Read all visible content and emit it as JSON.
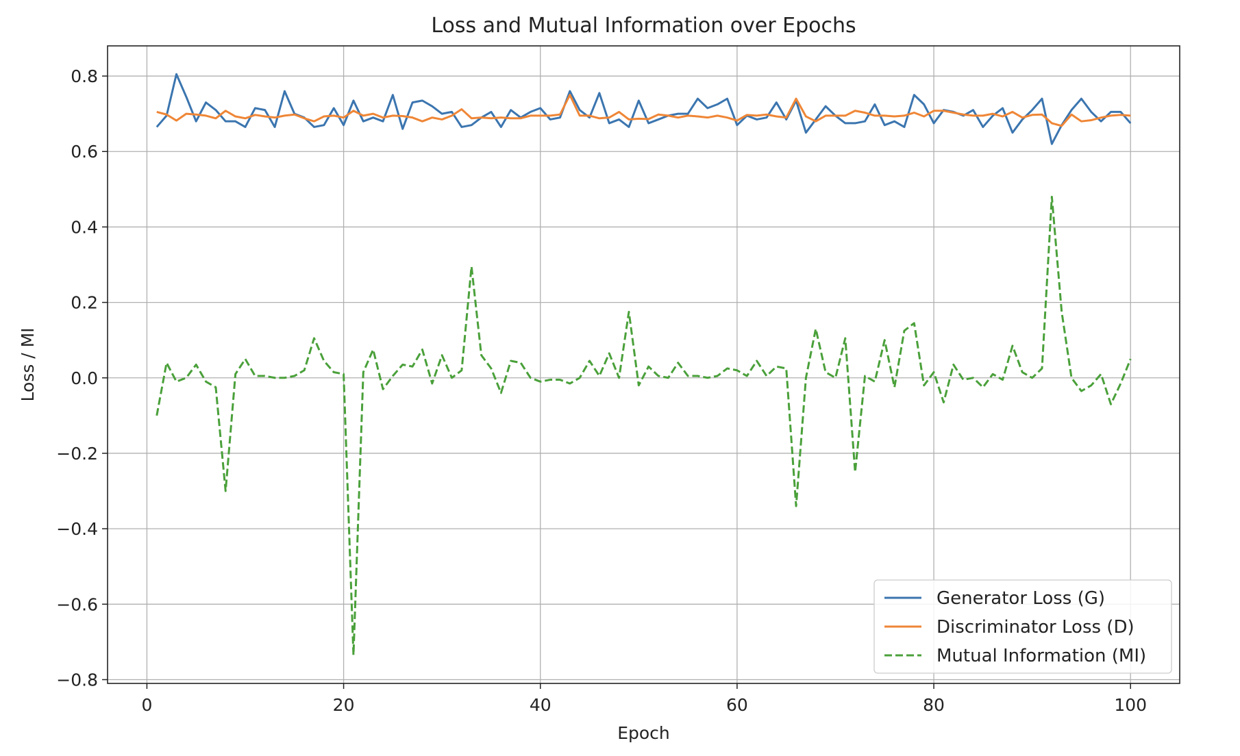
{
  "chart_data": {
    "type": "line",
    "title": "Loss and Mutual Information over Epochs",
    "xlabel": "Epoch",
    "ylabel": "Loss / MI",
    "xlim": [
      -4,
      105
    ],
    "ylim": [
      -0.81,
      0.88
    ],
    "xticks": [
      0,
      20,
      40,
      60,
      80,
      100
    ],
    "yticks": [
      -0.8,
      -0.6,
      -0.4,
      -0.2,
      0.0,
      0.2,
      0.4,
      0.6,
      0.8
    ],
    "xtick_labels": [
      "0",
      "20",
      "40",
      "60",
      "80",
      "100"
    ],
    "ytick_labels": [
      "−0.8",
      "−0.6",
      "−0.4",
      "−0.2",
      "0.0",
      "0.2",
      "0.4",
      "0.6",
      "0.8"
    ],
    "grid": true,
    "legend_position": "bottom-right",
    "x": [
      1,
      2,
      3,
      4,
      5,
      6,
      7,
      8,
      9,
      10,
      11,
      12,
      13,
      14,
      15,
      16,
      17,
      18,
      19,
      20,
      21,
      22,
      23,
      24,
      25,
      26,
      27,
      28,
      29,
      30,
      31,
      32,
      33,
      34,
      35,
      36,
      37,
      38,
      39,
      40,
      41,
      42,
      43,
      44,
      45,
      46,
      47,
      48,
      49,
      50,
      51,
      52,
      53,
      54,
      55,
      56,
      57,
      58,
      59,
      60,
      61,
      62,
      63,
      64,
      65,
      66,
      67,
      68,
      69,
      70,
      71,
      72,
      73,
      74,
      75,
      76,
      77,
      78,
      79,
      80,
      81,
      82,
      83,
      84,
      85,
      86,
      87,
      88,
      89,
      90,
      91,
      92,
      93,
      94,
      95,
      96,
      97,
      98,
      99,
      100
    ],
    "series": [
      {
        "name": "Generator Loss (G)",
        "color": "#3b75af",
        "dash": "solid",
        "values": [
          0.665,
          0.695,
          0.805,
          0.745,
          0.68,
          0.73,
          0.71,
          0.68,
          0.68,
          0.665,
          0.715,
          0.71,
          0.665,
          0.76,
          0.7,
          0.69,
          0.665,
          0.67,
          0.715,
          0.67,
          0.735,
          0.68,
          0.69,
          0.68,
          0.75,
          0.66,
          0.73,
          0.735,
          0.72,
          0.7,
          0.705,
          0.665,
          0.67,
          0.69,
          0.705,
          0.665,
          0.71,
          0.69,
          0.705,
          0.715,
          0.685,
          0.69,
          0.76,
          0.71,
          0.69,
          0.755,
          0.675,
          0.685,
          0.665,
          0.735,
          0.675,
          0.685,
          0.695,
          0.7,
          0.7,
          0.74,
          0.715,
          0.725,
          0.74,
          0.67,
          0.695,
          0.685,
          0.69,
          0.73,
          0.685,
          0.735,
          0.65,
          0.685,
          0.72,
          0.695,
          0.675,
          0.675,
          0.68,
          0.725,
          0.67,
          0.68,
          0.665,
          0.75,
          0.725,
          0.675,
          0.71,
          0.705,
          0.695,
          0.71,
          0.665,
          0.695,
          0.715,
          0.65,
          0.685,
          0.71,
          0.74,
          0.62,
          0.67,
          0.71,
          0.74,
          0.705,
          0.68,
          0.705,
          0.705,
          0.675
        ]
      },
      {
        "name": "Discriminator Loss (D)",
        "color": "#ef8636",
        "dash": "solid",
        "values": [
          0.705,
          0.698,
          0.682,
          0.7,
          0.698,
          0.695,
          0.688,
          0.708,
          0.693,
          0.688,
          0.697,
          0.693,
          0.69,
          0.695,
          0.698,
          0.688,
          0.68,
          0.693,
          0.695,
          0.69,
          0.708,
          0.695,
          0.7,
          0.69,
          0.695,
          0.694,
          0.69,
          0.68,
          0.69,
          0.685,
          0.695,
          0.712,
          0.688,
          0.69,
          0.688,
          0.69,
          0.688,
          0.688,
          0.695,
          0.695,
          0.695,
          0.698,
          0.75,
          0.695,
          0.695,
          0.688,
          0.69,
          0.705,
          0.685,
          0.687,
          0.686,
          0.698,
          0.695,
          0.69,
          0.695,
          0.693,
          0.69,
          0.695,
          0.69,
          0.682,
          0.697,
          0.695,
          0.698,
          0.693,
          0.69,
          0.74,
          0.693,
          0.68,
          0.695,
          0.695,
          0.695,
          0.708,
          0.703,
          0.695,
          0.695,
          0.693,
          0.695,
          0.703,
          0.693,
          0.708,
          0.708,
          0.703,
          0.698,
          0.695,
          0.695,
          0.7,
          0.693,
          0.705,
          0.69,
          0.697,
          0.698,
          0.675,
          0.668,
          0.698,
          0.68,
          0.683,
          0.69,
          0.695,
          0.697,
          0.695
        ]
      },
      {
        "name": "Mutual Information (MI)",
        "color": "#4aa03a",
        "dash": "dashed",
        "values": [
          -0.1,
          0.04,
          -0.01,
          0.0,
          0.035,
          -0.01,
          -0.025,
          -0.3,
          0.01,
          0.05,
          0.005,
          0.005,
          0.0,
          0.0,
          0.005,
          0.02,
          0.105,
          0.045,
          0.015,
          0.01,
          -0.735,
          0.015,
          0.075,
          -0.03,
          0.005,
          0.035,
          0.03,
          0.075,
          -0.015,
          0.06,
          0.0,
          0.02,
          0.295,
          0.06,
          0.025,
          -0.04,
          0.045,
          0.04,
          0.0,
          -0.01,
          -0.005,
          -0.005,
          -0.015,
          0.0,
          0.045,
          0.005,
          0.065,
          0.0,
          0.175,
          -0.02,
          0.03,
          0.005,
          0.0,
          0.04,
          0.005,
          0.005,
          0.0,
          0.005,
          0.025,
          0.02,
          0.005,
          0.045,
          0.005,
          0.03,
          0.025,
          -0.34,
          0.0,
          0.13,
          0.015,
          0.0,
          0.105,
          -0.25,
          0.005,
          -0.01,
          0.1,
          -0.025,
          0.125,
          0.145,
          -0.02,
          0.015,
          -0.065,
          0.035,
          -0.005,
          0.0,
          -0.025,
          0.01,
          -0.005,
          0.085,
          0.015,
          0.0,
          0.025,
          0.48,
          0.175,
          0.0,
          -0.035,
          -0.02,
          0.01,
          -0.07,
          -0.015,
          0.05
        ]
      }
    ]
  }
}
